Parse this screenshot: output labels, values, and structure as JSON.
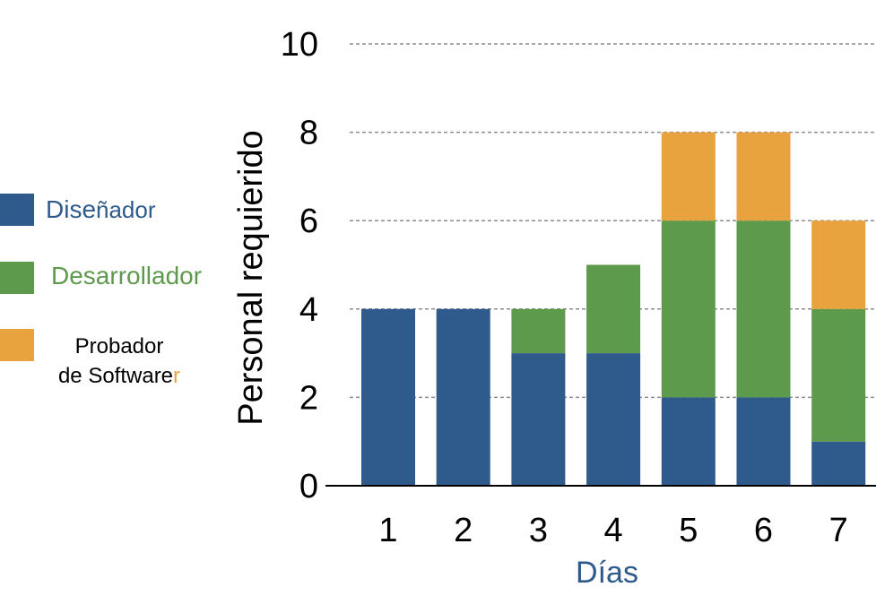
{
  "chart_data": {
    "type": "bar",
    "stacked": true,
    "categories": [
      "1",
      "2",
      "3",
      "4",
      "5",
      "6",
      "7"
    ],
    "series": [
      {
        "name": "Diseñador",
        "values": [
          4,
          4,
          3,
          3,
          2,
          2,
          1
        ],
        "color": "#2e5a8c"
      },
      {
        "name": "Desarrollador",
        "values": [
          0,
          0,
          1,
          2,
          4,
          4,
          3
        ],
        "color": "#5e9a4b"
      },
      {
        "name": "Probador de Software",
        "values": [
          0,
          0,
          0,
          0,
          2,
          2,
          2
        ],
        "color": "#e8a33f"
      }
    ],
    "xlabel": "Días",
    "ylabel": "Personal  requierido",
    "ylim": [
      0,
      10
    ],
    "yticks": [
      0,
      2,
      4,
      6,
      8,
      10
    ],
    "grid": true
  },
  "legend": {
    "disenador": {
      "pre": "Dise",
      "post": "ñador",
      "color": "#2e5a8c",
      "color_post": "#2e5a8c"
    },
    "desarrollador": {
      "text": "Desarrollador",
      "color": "#5e9a4b"
    },
    "probador": {
      "line1": "Probador",
      "line2_pre": "de Software",
      "line2_post": "r",
      "color": "#000000",
      "accent": "#e8a33f"
    }
  }
}
